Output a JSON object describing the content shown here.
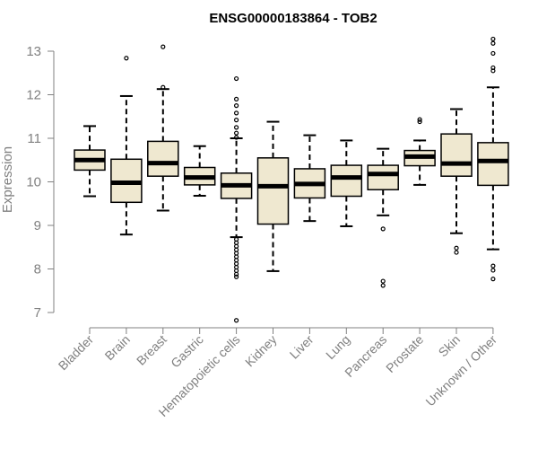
{
  "chart_data": {
    "type": "box",
    "title": "ENSG00000183864 - TOB2",
    "xlabel": "",
    "ylabel": "Expression",
    "ylim": [
      6.7,
      13.3
    ],
    "yticks": [
      7,
      8,
      9,
      10,
      11,
      12,
      13
    ],
    "grid": false,
    "colors": {
      "box_fill": "#efe8d0",
      "stroke": "#000000",
      "axis": "#808080"
    },
    "categories": [
      "Bladder",
      "Brain",
      "Breast",
      "Gastric",
      "Hematopoietic cells",
      "Kidney",
      "Liver",
      "Lung",
      "Pancreas",
      "Prostate",
      "Skin",
      "Unknown / Other"
    ],
    "boxes": [
      {
        "category": "Bladder",
        "whisker_low": 9.67,
        "q1": 10.27,
        "median": 10.5,
        "q3": 10.73,
        "whisker_high": 11.28,
        "outliers": []
      },
      {
        "category": "Brain",
        "whisker_low": 8.79,
        "q1": 9.53,
        "median": 9.98,
        "q3": 10.52,
        "whisker_high": 11.97,
        "outliers": [
          12.84
        ]
      },
      {
        "category": "Breast",
        "whisker_low": 9.34,
        "q1": 10.13,
        "median": 10.43,
        "q3": 10.93,
        "whisker_high": 12.13,
        "outliers": [
          12.17,
          13.1
        ]
      },
      {
        "category": "Gastric",
        "whisker_low": 9.68,
        "q1": 9.93,
        "median": 10.1,
        "q3": 10.33,
        "whisker_high": 10.82,
        "outliers": []
      },
      {
        "category": "Hematopoietic cells",
        "whisker_low": 8.73,
        "q1": 9.62,
        "median": 9.92,
        "q3": 10.2,
        "whisker_high": 11.0,
        "outliers": [
          12.37,
          11.9,
          11.75,
          11.58,
          11.42,
          11.25,
          11.12,
          11.02,
          8.68,
          8.6,
          8.52,
          8.44,
          8.36,
          8.28,
          8.2,
          8.12,
          8.04,
          7.96,
          7.88,
          7.82,
          6.82
        ]
      },
      {
        "category": "Kidney",
        "whisker_low": 7.95,
        "q1": 9.03,
        "median": 9.9,
        "q3": 10.55,
        "whisker_high": 11.38,
        "outliers": []
      },
      {
        "category": "Liver",
        "whisker_low": 9.1,
        "q1": 9.63,
        "median": 9.95,
        "q3": 10.3,
        "whisker_high": 11.07,
        "outliers": []
      },
      {
        "category": "Lung",
        "whisker_low": 8.98,
        "q1": 9.67,
        "median": 10.1,
        "q3": 10.38,
        "whisker_high": 10.95,
        "outliers": []
      },
      {
        "category": "Pancreas",
        "whisker_low": 9.23,
        "q1": 9.82,
        "median": 10.18,
        "q3": 10.38,
        "whisker_high": 10.76,
        "outliers": [
          8.92,
          7.72,
          7.62
        ]
      },
      {
        "category": "Prostate",
        "whisker_low": 9.93,
        "q1": 10.37,
        "median": 10.58,
        "q3": 10.72,
        "whisker_high": 10.95,
        "outliers": [
          11.38,
          11.43
        ]
      },
      {
        "category": "Skin",
        "whisker_low": 8.82,
        "q1": 10.13,
        "median": 10.42,
        "q3": 11.1,
        "whisker_high": 11.67,
        "outliers": [
          8.48,
          8.38
        ]
      },
      {
        "category": "Unknown / Other",
        "whisker_low": 8.45,
        "q1": 9.92,
        "median": 10.48,
        "q3": 10.9,
        "whisker_high": 12.17,
        "outliers": [
          13.28,
          13.18,
          12.95,
          12.62,
          12.55,
          8.07,
          7.97,
          7.77
        ]
      }
    ]
  }
}
